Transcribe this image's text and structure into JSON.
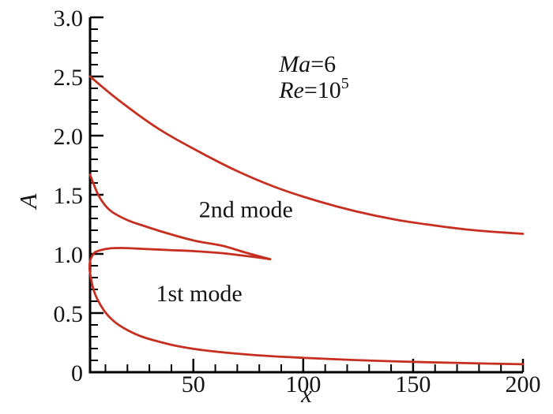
{
  "figure": {
    "background": "#ffffff"
  },
  "chart_data": {
    "type": "line",
    "title": "",
    "xlabel": "x",
    "ylabel": "A",
    "xlim": [
      3,
      200
    ],
    "ylim": [
      0,
      3.0
    ],
    "grid": false,
    "legend": "none",
    "axis_color": "#000000",
    "text_color": "#141414",
    "curve_color": "#c62e1f",
    "x_ticks": [
      {
        "v": 50,
        "label": "50"
      },
      {
        "v": 100,
        "label": "100"
      },
      {
        "v": 150,
        "label": "150"
      },
      {
        "v": 200,
        "label": "200"
      }
    ],
    "y_ticks": [
      {
        "v": 0,
        "label": "0"
      },
      {
        "v": 0.5,
        "label": "0.5"
      },
      {
        "v": 1,
        "label": "1.0"
      },
      {
        "v": 1.5,
        "label": "1.5"
      },
      {
        "v": 2,
        "label": "2.0"
      },
      {
        "v": 2.5,
        "label": "2.5"
      },
      {
        "v": 3,
        "label": "3.0"
      }
    ],
    "x_minor_step": 10,
    "y_minor_step": 0.1,
    "annotations": [
      {
        "name": "mach-number-annotation",
        "x": 89,
        "y": 2.54,
        "segments": [
          {
            "t": "Ma",
            "italic": true
          },
          {
            "t": "=6"
          }
        ]
      },
      {
        "name": "reynolds-number-annotation",
        "x": 89,
        "y": 2.32,
        "segments": [
          {
            "t": "Re",
            "italic": true
          },
          {
            "t": "=10"
          },
          {
            "t": "5",
            "sup": true
          }
        ]
      },
      {
        "name": "second-mode-label",
        "x": 52.5,
        "y": 1.31,
        "segments": [
          {
            "t": "2nd mode"
          }
        ]
      },
      {
        "name": "first-mode-label",
        "x": 33,
        "y": 0.6,
        "segments": [
          {
            "t": "1st mode"
          }
        ]
      }
    ],
    "series": [
      {
        "name": "second-mode-upper-branch-curve",
        "points": [
          [
            3,
            2.5
          ],
          [
            16,
            2.3
          ],
          [
            34,
            2.06
          ],
          [
            52,
            1.87
          ],
          [
            70,
            1.7
          ],
          [
            88,
            1.56
          ],
          [
            106,
            1.45
          ],
          [
            124,
            1.36
          ],
          [
            142,
            1.29
          ],
          [
            160,
            1.24
          ],
          [
            178,
            1.2
          ],
          [
            200,
            1.17
          ]
        ]
      },
      {
        "name": "second-mode-wedge-upper-branch",
        "points": [
          [
            3,
            1.67
          ],
          [
            7,
            1.49
          ],
          [
            12,
            1.37
          ],
          [
            19.5,
            1.29
          ],
          [
            27,
            1.24
          ],
          [
            39,
            1.17
          ],
          [
            51,
            1.11
          ],
          [
            63,
            1.07
          ],
          [
            74,
            1.01
          ],
          [
            85,
            0.955
          ]
        ]
      },
      {
        "name": "first-mode-and-wedge-lower-branch",
        "points": [
          [
            85,
            0.955
          ],
          [
            80,
            0.968
          ],
          [
            74,
            0.983
          ],
          [
            63,
            1.007
          ],
          [
            51,
            1.023
          ],
          [
            39,
            1.033
          ],
          [
            27,
            1.043
          ],
          [
            18,
            1.05
          ],
          [
            12,
            1.047
          ],
          [
            8,
            1.033
          ],
          [
            5.2,
            1.013
          ],
          [
            3.9,
            0.98
          ],
          [
            3.0,
            0.94
          ],
          [
            2.75,
            0.89
          ],
          [
            2.9,
            0.85
          ],
          [
            3.3,
            0.81
          ],
          [
            4.1,
            0.73
          ],
          [
            5.5,
            0.65
          ],
          [
            7.7,
            0.57
          ],
          [
            9.8,
            0.51
          ],
          [
            12.7,
            0.45
          ],
          [
            16,
            0.4
          ],
          [
            20.6,
            0.35
          ],
          [
            26.7,
            0.3
          ],
          [
            34,
            0.26
          ],
          [
            43,
            0.22
          ],
          [
            54,
            0.187
          ],
          [
            68,
            0.16
          ],
          [
            84,
            0.137
          ],
          [
            102,
            0.12
          ],
          [
            124,
            0.103
          ],
          [
            145,
            0.09
          ],
          [
            167,
            0.08
          ],
          [
            185,
            0.073
          ],
          [
            200,
            0.067
          ]
        ]
      }
    ]
  }
}
